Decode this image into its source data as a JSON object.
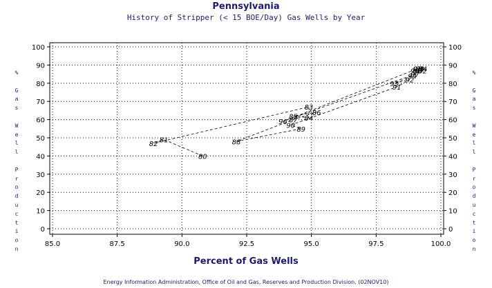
{
  "header": {
    "title": "Pennsylvania",
    "subtitle": "History of Stripper (< 15 BOE/Day) Gas Wells by Year"
  },
  "footer": {
    "source": "Energy Information Administration, Office of Oil and Gas, Reserves and Production Division. (02NOV10)"
  },
  "chart_data": {
    "type": "scatter",
    "title": "Pennsylvania",
    "subtitle": "History of Stripper (< 15 BOE/Day) Gas Wells by Year",
    "xlabel": "Percent of Gas Wells",
    "ylabel": "% Gas Well Production",
    "xlim": [
      85,
      100
    ],
    "ylim": [
      0,
      100
    ],
    "xticks": [
      "85.0",
      "87.5",
      "90.0",
      "92.5",
      "95.0",
      "97.5",
      "100.0"
    ],
    "yticks": [
      "0",
      "10",
      "20",
      "30",
      "40",
      "50",
      "60",
      "70",
      "80",
      "90",
      "100"
    ],
    "grid": true,
    "connected": true,
    "line_style": "dashed",
    "marker": "year-label",
    "points": [
      {
        "label": "80",
        "x": 90.8,
        "y": 40
      },
      {
        "label": "81",
        "x": 89.3,
        "y": 49
      },
      {
        "label": "82",
        "x": 88.9,
        "y": 47
      },
      {
        "label": "83",
        "x": 94.9,
        "y": 67
      },
      {
        "label": "84",
        "x": 94.9,
        "y": 61
      },
      {
        "label": "85",
        "x": 94.3,
        "y": 62
      },
      {
        "label": "86",
        "x": 95.2,
        "y": 64
      },
      {
        "label": "87",
        "x": 94.3,
        "y": 60
      },
      {
        "label": "88",
        "x": 92.1,
        "y": 48
      },
      {
        "label": "89",
        "x": 94.6,
        "y": 55
      },
      {
        "label": "90",
        "x": 94.2,
        "y": 57
      },
      {
        "label": "91",
        "x": 98.3,
        "y": 78
      },
      {
        "label": "92",
        "x": 98.8,
        "y": 82
      },
      {
        "label": "93",
        "x": 98.2,
        "y": 80
      },
      {
        "label": "94",
        "x": 98.9,
        "y": 84
      },
      {
        "label": "95",
        "x": 99.1,
        "y": 88
      },
      {
        "label": "96",
        "x": 93.9,
        "y": 59
      },
      {
        "label": "97",
        "x": 99.0,
        "y": 85
      },
      {
        "label": "98",
        "x": 99.0,
        "y": 87
      },
      {
        "label": "99",
        "x": 99.2,
        "y": 88
      },
      {
        "label": "00",
        "x": 99.1,
        "y": 87
      },
      {
        "label": "01",
        "x": 99.2,
        "y": 88
      },
      {
        "label": "02",
        "x": 99.3,
        "y": 87
      },
      {
        "label": "03",
        "x": 99.1,
        "y": 88
      },
      {
        "label": "04",
        "x": 99.3,
        "y": 88
      }
    ]
  }
}
